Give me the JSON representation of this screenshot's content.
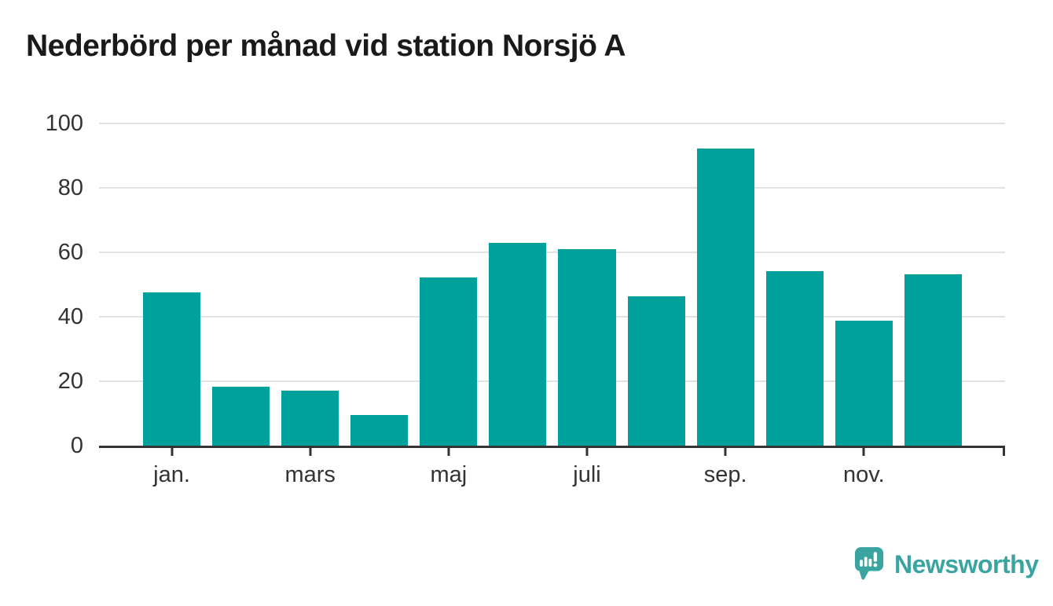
{
  "title": "Nederbörd per månad vid station Norsjö A",
  "chart_data": {
    "type": "bar",
    "title": "Nederbörd per månad vid station Norsjö A",
    "categories": [
      "jan.",
      "",
      "mars",
      "",
      "maj",
      "",
      "juli",
      "",
      "sep.",
      "",
      "nov.",
      ""
    ],
    "values": [
      47.5,
      18.2,
      17.1,
      9.5,
      52.3,
      62.9,
      61.1,
      46.4,
      92.1,
      54.2,
      38.9,
      53.1
    ],
    "xlabel": "",
    "ylabel": "",
    "ylim": [
      0,
      100
    ],
    "yticks": [
      0,
      20,
      40,
      60,
      80,
      100
    ],
    "xticks": [
      {
        "index": 0,
        "label": "jan."
      },
      {
        "index": 2,
        "label": "mars"
      },
      {
        "index": 4,
        "label": "maj"
      },
      {
        "index": 6,
        "label": "juli"
      },
      {
        "index": 8,
        "label": "sep."
      },
      {
        "index": 10,
        "label": "nov."
      }
    ],
    "grid": true,
    "legend": false
  },
  "colors": {
    "bar": "#00a19a",
    "axis": "#333333",
    "gridline": "#e2e2e2",
    "tick_label": "#333333",
    "title_text": "#1a1a1a",
    "logo": "#3aa5a0"
  },
  "branding": {
    "logo_text": "Newsworthy",
    "logo_icon": "speech-bubble-bar-chart-icon"
  }
}
